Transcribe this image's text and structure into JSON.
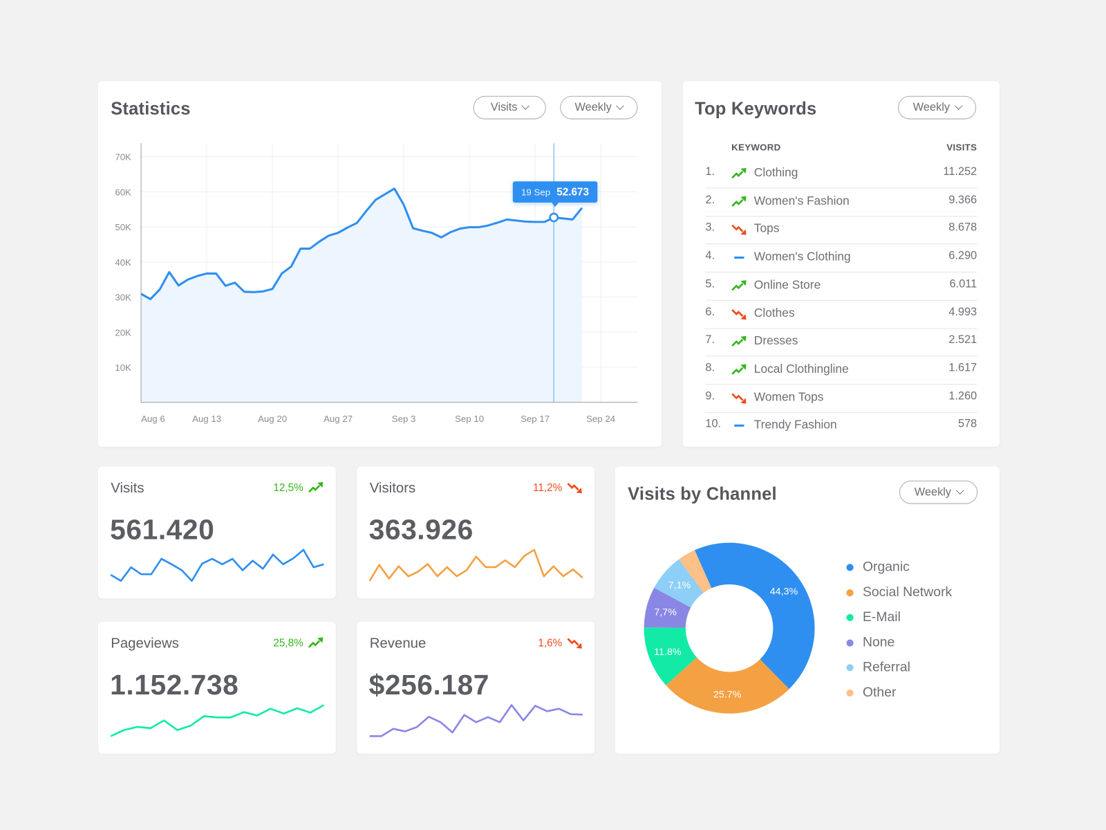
{
  "statistics": {
    "title": "Statistics",
    "dropdown_metric": "Visits",
    "dropdown_period": "Weekly",
    "tooltip": {
      "date": "19 Sep",
      "value": "52.673"
    }
  },
  "chart_data": [
    {
      "type": "area",
      "x": [
        "Aug 6",
        "Aug 7",
        "Aug 8",
        "Aug 9",
        "Aug 10",
        "Aug 11",
        "Aug 12",
        "Aug 13",
        "Aug 14",
        "Aug 15",
        "Aug 16",
        "Aug 17",
        "Aug 18",
        "Aug 19",
        "Aug 20",
        "Aug 21",
        "Aug 22",
        "Aug 23",
        "Aug 24",
        "Aug 25",
        "Aug 26",
        "Aug 27",
        "Aug 28",
        "Aug 29",
        "Aug 30",
        "Aug 31",
        "Sep 1",
        "Sep 2",
        "Sep 3",
        "Sep 4",
        "Sep 5",
        "Sep 6",
        "Sep 7",
        "Sep 8",
        "Sep 9",
        "Sep 10",
        "Sep 11",
        "Sep 12",
        "Sep 13",
        "Sep 14",
        "Sep 15",
        "Sep 16",
        "Sep 17",
        "Sep 18",
        "Sep 19",
        "Sep 20",
        "Sep 21",
        "Sep 22"
      ],
      "values": [
        30900,
        29400,
        32200,
        37100,
        33300,
        35000,
        36000,
        36700,
        36700,
        33200,
        34100,
        31500,
        31400,
        31600,
        32300,
        36700,
        38700,
        43800,
        43800,
        45800,
        47500,
        48300,
        49800,
        51100,
        54500,
        57700,
        59300,
        60900,
        56300,
        49600,
        48900,
        48300,
        47000,
        48500,
        49500,
        49900,
        49900,
        50400,
        51200,
        52100,
        51800,
        51500,
        51400,
        51400,
        52673,
        52400,
        52100,
        55400
      ],
      "ylim": [
        0,
        70000
      ],
      "yticks": [
        "10K",
        "20K",
        "30K",
        "40K",
        "50K",
        "60K",
        "70K"
      ],
      "xticks": [
        "Aug 6",
        "Aug 13",
        "Aug 20",
        "Aug 27",
        "Sep 3",
        "Sep 10",
        "Sep 17",
        "Sep 24"
      ],
      "grid": true,
      "highlight": {
        "x": "Sep 19",
        "value": 52673
      },
      "color": "#2F8FF0"
    },
    {
      "type": "pie",
      "title": "Visits by Channel",
      "donut": true,
      "categories": [
        "Organic",
        "Social Network",
        "E-Mail",
        "None",
        "Referral",
        "Other"
      ],
      "values": [
        44.3,
        25.7,
        11.8,
        7.7,
        7.1,
        3.4
      ],
      "data_labels": [
        "44,3%",
        "25.7%",
        "11.8%",
        "7,7%",
        "7,1%",
        ""
      ],
      "colors": [
        "#2F8FF0",
        "#F4A144",
        "#13EAA6",
        "#8A87E4",
        "#8DCFF6",
        "#FDC086"
      ],
      "legend": "right"
    }
  ],
  "keywords": {
    "title": "Top Keywords",
    "dropdown_period": "Weekly",
    "col_keyword": "KEYWORD",
    "col_visits": "VISITS",
    "rows": [
      {
        "rank": "1.",
        "trend": "up",
        "keyword": "Clothing",
        "visits": "11.252"
      },
      {
        "rank": "2.",
        "trend": "up",
        "keyword": "Women's Fashion",
        "visits": "9.366"
      },
      {
        "rank": "3.",
        "trend": "down",
        "keyword": "Tops",
        "visits": "8.678"
      },
      {
        "rank": "4.",
        "trend": "flat",
        "keyword": "Women's Clothing",
        "visits": "6.290"
      },
      {
        "rank": "5.",
        "trend": "up",
        "keyword": "Online Store",
        "visits": "6.011"
      },
      {
        "rank": "6.",
        "trend": "down",
        "keyword": "Clothes",
        "visits": "4.993"
      },
      {
        "rank": "7.",
        "trend": "up",
        "keyword": "Dresses",
        "visits": "2.521"
      },
      {
        "rank": "8.",
        "trend": "up",
        "keyword": "Local Clothingline",
        "visits": "1.617"
      },
      {
        "rank": "9.",
        "trend": "down",
        "keyword": "Women Tops",
        "visits": "1.260"
      },
      {
        "rank": "10.",
        "trend": "flat",
        "keyword": "Trendy Fashion",
        "visits": "578"
      }
    ]
  },
  "stats": [
    {
      "label": "Visits",
      "change": "12,5%",
      "trend": "up",
      "value": "561.420",
      "color": "#2F8FF0",
      "spark": [
        45,
        25,
        70,
        47,
        47,
        98,
        80,
        60,
        25,
        82,
        98,
        80,
        98,
        60,
        92,
        65,
        112,
        80,
        100,
        128,
        70,
        80
      ]
    },
    {
      "label": "Visitors",
      "change": "11,2%",
      "trend": "down",
      "value": "363.926",
      "color": "#F4A144",
      "spark": [
        45,
        80,
        50,
        77,
        55,
        65,
        82,
        55,
        75,
        55,
        68,
        98,
        75,
        75,
        90,
        75,
        100,
        113,
        55,
        77,
        55,
        70,
        52
      ]
    },
    {
      "label": "Pageviews",
      "change": "25,8%",
      "trend": "up",
      "value": "1.152.738",
      "color": "#13EAA6",
      "spark": [
        35,
        60,
        73,
        68,
        100,
        60,
        78,
        117,
        112,
        112,
        134,
        120,
        148,
        128,
        150,
        132,
        163
      ]
    },
    {
      "label": "Revenue",
      "change": "1,6%",
      "trend": "down",
      "value": "$256.187",
      "color": "#8A87E4",
      "spark": [
        60,
        60,
        80,
        73,
        85,
        113,
        98,
        70,
        118,
        98,
        112,
        98,
        145,
        103,
        143,
        128,
        135,
        120,
        119
      ]
    }
  ],
  "channels": {
    "title": "Visits by Channel",
    "dropdown_period": "Weekly"
  },
  "trend_colors": {
    "up": "#33B61A",
    "down": "#EE4A1C",
    "flat": "#2F8FF0"
  }
}
